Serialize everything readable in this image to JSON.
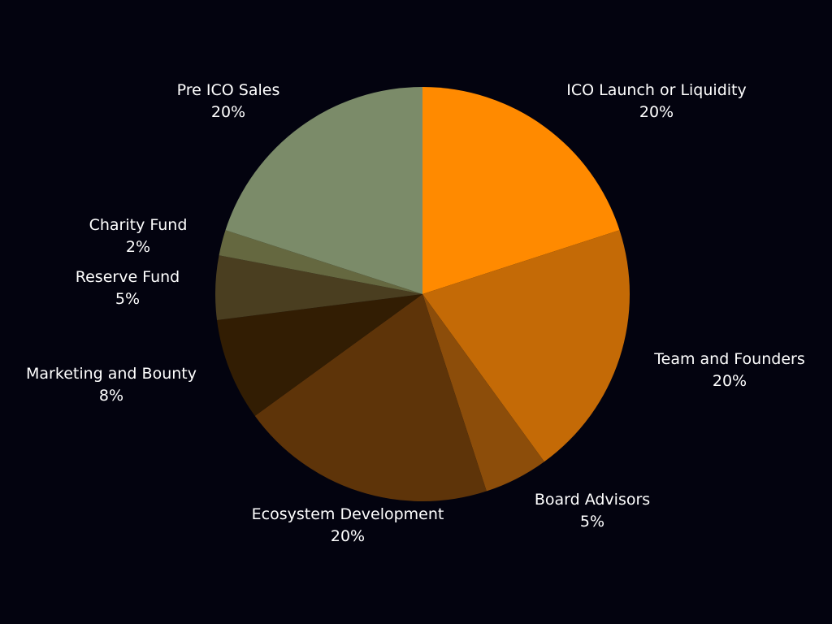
{
  "chart_data": {
    "type": "pie",
    "start_angle_deg": 0,
    "direction": "clockwise",
    "slices": [
      {
        "label": "ICO Launch or Liquidity",
        "value": 20,
        "value_label": "20%",
        "color": "#ff8a00"
      },
      {
        "label": "Team and Founders",
        "value": 20,
        "value_label": "20%",
        "color": "#c46a06"
      },
      {
        "label": "Board Advisors",
        "value": 5,
        "value_label": "5%",
        "color": "#8c4d0a"
      },
      {
        "label": "Ecosystem Development",
        "value": 20,
        "value_label": "20%",
        "color": "#5e3409"
      },
      {
        "label": "Marketing and Bounty",
        "value": 8,
        "value_label": "8%",
        "color": "#321d03"
      },
      {
        "label": "Reserve Fund",
        "value": 5,
        "value_label": "5%",
        "color": "#4a3e20"
      },
      {
        "label": "Charity Fund",
        "value": 2,
        "value_label": "2%",
        "color": "#656840"
      },
      {
        "label": "Pre ICO Sales",
        "value": 20,
        "value_label": "20%",
        "color": "#7b8b69"
      }
    ]
  },
  "colors": {
    "background": "#03030f",
    "label_text": "#ffffff"
  }
}
